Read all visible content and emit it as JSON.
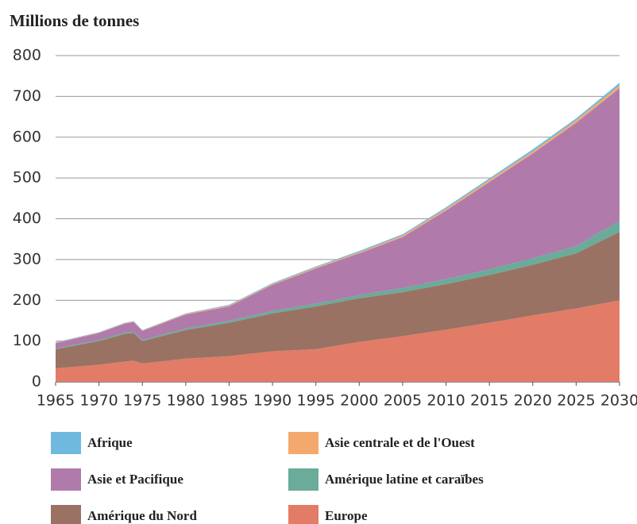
{
  "chart_data": {
    "type": "stacked_area",
    "title": "Millions de tonnes",
    "x": [
      1965,
      1970,
      1973,
      1974,
      1975,
      1980,
      1985,
      1990,
      1995,
      2000,
      2005,
      2010,
      2015,
      2020,
      2025,
      2030
    ],
    "series": [
      {
        "name": "Afrique",
        "color": "#70b9de",
        "values": [
          1,
          1,
          1,
          1,
          1,
          1,
          2,
          2,
          2,
          3,
          3,
          4,
          4,
          5,
          5,
          6
        ]
      },
      {
        "name": "Asie centrale et de l'Ouest",
        "color": "#f3a96d",
        "values": [
          1,
          1,
          1,
          1,
          1,
          2,
          2,
          2,
          3,
          3,
          4,
          4,
          5,
          5,
          6,
          7
        ]
      },
      {
        "name": "Asie et Pacifique",
        "color": "#b07aab",
        "values": [
          13,
          17,
          22,
          24,
          22,
          34,
          35,
          64,
          86,
          102,
          125,
          168,
          214,
          257,
          302,
          325
        ]
      },
      {
        "name": "Amérique latine et caraïbes",
        "color": "#6aab99",
        "values": [
          2,
          3,
          3,
          3,
          3,
          4,
          5,
          6,
          7,
          8,
          10,
          12,
          14,
          16,
          18,
          27
        ]
      },
      {
        "name": "Amérique du Nord",
        "color": "#9a7264",
        "values": [
          47,
          58,
          68,
          68,
          55,
          70,
          82,
          93,
          105,
          107,
          108,
          112,
          117,
          124,
          135,
          168
        ]
      },
      {
        "name": "Europe",
        "color": "#e27c67",
        "values": [
          33,
          42,
          50,
          52,
          45,
          57,
          63,
          75,
          80,
          98,
          112,
          128,
          145,
          163,
          180,
          200
        ]
      }
    ],
    "xlim": [
      1965,
      2030
    ],
    "xticks": [
      1965,
      1970,
      1975,
      1980,
      1985,
      1990,
      1995,
      2000,
      2005,
      2010,
      2015,
      2020,
      2025,
      2030
    ],
    "ylim": [
      0,
      800
    ],
    "yticks": [
      0,
      100,
      200,
      300,
      400,
      500,
      600,
      700,
      800
    ],
    "grid": true
  }
}
